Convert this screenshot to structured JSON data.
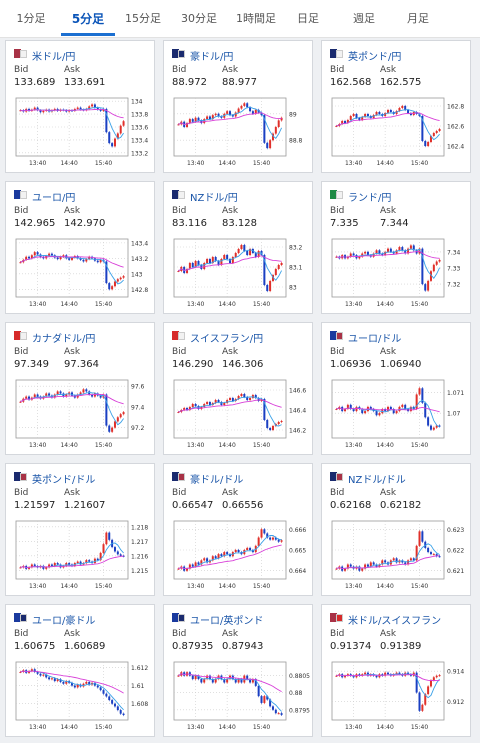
{
  "tabs": [
    {
      "label": "1分足",
      "active": false
    },
    {
      "label": "5分足",
      "active": true
    },
    {
      "label": "15分足",
      "active": false
    },
    {
      "label": "30分足",
      "active": false
    },
    {
      "label": "1時間足",
      "active": false
    },
    {
      "label": "日足",
      "active": false
    },
    {
      "label": "週足",
      "active": false
    },
    {
      "label": "月足",
      "active": false
    }
  ],
  "colors": {
    "accent": "#1b6fd1",
    "up": "#e0302a",
    "down": "#1a3fc2",
    "ma_short": "#3aa1e8",
    "ma_long": "#d83fd8"
  },
  "labels": {
    "bid": "Bid",
    "ask": "Ask"
  },
  "cards": [
    {
      "name": "米ドル/円",
      "flag": [
        "#a83246",
        "#f2f2f2"
      ],
      "bid": "133.689",
      "ask": "133.691",
      "icon": "flag-us-jp-icon",
      "chart_data": {
        "type": "candlestick",
        "x_ticks": [
          "13:40",
          "14:40",
          "15:40"
        ],
        "y_ticks": [
          "134",
          "133.8",
          "133.6",
          "133.4",
          "133.2"
        ],
        "ylim": [
          133.15,
          134.05
        ],
        "close": [
          133.86,
          133.84,
          133.88,
          133.85,
          133.87,
          133.9,
          133.86,
          133.83,
          133.85,
          133.87,
          133.84,
          133.86,
          133.88,
          133.85,
          133.87,
          133.86,
          133.84,
          133.86,
          133.85,
          133.88,
          133.9,
          133.87,
          133.86,
          133.88,
          133.92,
          133.95,
          133.9,
          133.87,
          133.85,
          133.88,
          133.52,
          133.35,
          133.3,
          133.42,
          133.5,
          133.62,
          133.69
        ]
      }
    },
    {
      "name": "豪ドル/円",
      "flag": [
        "#1a2a6e",
        "#1a2a6e"
      ],
      "bid": "88.972",
      "ask": "88.977",
      "icon": "flag-au-jp-icon",
      "chart_data": {
        "type": "candlestick",
        "x_ticks": [
          "13:40",
          "14:40",
          "15:40"
        ],
        "y_ticks": [
          "89",
          "88.8"
        ],
        "ylim": [
          88.68,
          89.12
        ],
        "close": [
          88.92,
          88.94,
          88.9,
          88.93,
          88.96,
          88.94,
          88.97,
          88.95,
          88.93,
          88.96,
          88.98,
          88.96,
          88.99,
          89.0,
          88.98,
          88.97,
          89.0,
          89.02,
          88.99,
          88.98,
          89.01,
          89.04,
          89.06,
          89.08,
          89.05,
          89.02,
          89.0,
          89.03,
          89.01,
          88.99,
          88.78,
          88.74,
          88.8,
          88.85,
          88.9,
          88.95,
          88.97
        ]
      }
    },
    {
      "name": "英ポンド/円",
      "flag": [
        "#1a2a6e",
        "#f2f2f2"
      ],
      "bid": "162.568",
      "ask": "162.575",
      "icon": "flag-gb-jp-icon",
      "chart_data": {
        "type": "candlestick",
        "x_ticks": [
          "13:40",
          "14:40",
          "15:40"
        ],
        "y_ticks": [
          "162.8",
          "162.6",
          "162.4"
        ],
        "ylim": [
          162.3,
          162.88
        ],
        "close": [
          162.6,
          162.62,
          162.65,
          162.63,
          162.66,
          162.7,
          162.72,
          162.68,
          162.66,
          162.69,
          162.72,
          162.7,
          162.68,
          162.71,
          162.74,
          162.72,
          162.7,
          162.73,
          162.76,
          162.74,
          162.72,
          162.75,
          162.78,
          162.8,
          162.76,
          162.73,
          162.71,
          162.74,
          162.72,
          162.7,
          162.45,
          162.4,
          162.44,
          162.5,
          162.53,
          162.55,
          162.57
        ]
      }
    },
    {
      "name": "ユーロ/円",
      "flag": [
        "#1a3a9e",
        "#f2f2f2"
      ],
      "bid": "142.965",
      "ask": "142.970",
      "icon": "flag-eu-jp-icon",
      "chart_data": {
        "type": "candlestick",
        "x_ticks": [
          "13:40",
          "14:40",
          "15:40"
        ],
        "y_ticks": [
          "143.4",
          "143.2",
          "143",
          "142.8"
        ],
        "ylim": [
          142.7,
          143.45
        ],
        "close": [
          143.15,
          143.18,
          143.22,
          143.2,
          143.24,
          143.28,
          143.25,
          143.22,
          143.2,
          143.23,
          143.26,
          143.24,
          143.21,
          143.19,
          143.22,
          143.24,
          143.2,
          143.18,
          143.21,
          143.23,
          143.2,
          143.18,
          143.16,
          143.19,
          143.22,
          143.2,
          143.17,
          143.15,
          143.18,
          143.16,
          142.88,
          142.8,
          142.84,
          142.9,
          142.93,
          142.95,
          142.97
        ]
      }
    },
    {
      "name": "NZドル/円",
      "flag": [
        "#1a2a6e",
        "#f2f2f2"
      ],
      "bid": "83.116",
      "ask": "83.128",
      "icon": "flag-nz-jp-icon",
      "chart_data": {
        "type": "candlestick",
        "x_ticks": [
          "13:40",
          "14:40",
          "15:40"
        ],
        "y_ticks": [
          "83.2",
          "83.1",
          "83"
        ],
        "ylim": [
          82.95,
          83.24
        ],
        "close": [
          83.08,
          83.1,
          83.07,
          83.09,
          83.12,
          83.1,
          83.13,
          83.11,
          83.09,
          83.12,
          83.14,
          83.12,
          83.15,
          83.13,
          83.11,
          83.14,
          83.16,
          83.14,
          83.12,
          83.15,
          83.17,
          83.19,
          83.21,
          83.18,
          83.16,
          83.19,
          83.17,
          83.15,
          83.18,
          83.16,
          83.01,
          82.98,
          83.03,
          83.06,
          83.09,
          83.11,
          83.12
        ]
      }
    },
    {
      "name": "ランド/円",
      "flag": [
        "#1e8a45",
        "#f2f2f2"
      ],
      "bid": "7.335",
      "ask": "7.344",
      "icon": "flag-za-jp-icon",
      "chart_data": {
        "type": "candlestick",
        "x_ticks": [
          "13:40",
          "14:40",
          "15:40"
        ],
        "y_ticks": [
          "7.34",
          "7.33",
          "7.32"
        ],
        "ylim": [
          7.312,
          7.348
        ],
        "close": [
          7.337,
          7.336,
          7.338,
          7.336,
          7.337,
          7.339,
          7.338,
          7.336,
          7.337,
          7.339,
          7.34,
          7.338,
          7.337,
          7.339,
          7.341,
          7.339,
          7.338,
          7.34,
          7.342,
          7.34,
          7.339,
          7.341,
          7.343,
          7.341,
          7.339,
          7.342,
          7.344,
          7.341,
          7.339,
          7.342,
          7.32,
          7.316,
          7.322,
          7.328,
          7.332,
          7.334,
          7.335
        ]
      }
    },
    {
      "name": "カナダドル/円",
      "flag": [
        "#d62a2a",
        "#f2f2f2"
      ],
      "bid": "97.349",
      "ask": "97.364",
      "icon": "flag-ca-jp-icon",
      "chart_data": {
        "type": "candlestick",
        "x_ticks": [
          "13:40",
          "14:40",
          "15:40"
        ],
        "y_ticks": [
          "97.6",
          "97.4",
          "97.2"
        ],
        "ylim": [
          97.1,
          97.66
        ],
        "close": [
          97.45,
          97.48,
          97.5,
          97.47,
          97.49,
          97.52,
          97.5,
          97.48,
          97.5,
          97.53,
          97.51,
          97.49,
          97.52,
          97.55,
          97.53,
          97.5,
          97.52,
          97.54,
          97.51,
          97.49,
          97.52,
          97.54,
          97.57,
          97.55,
          97.52,
          97.5,
          97.53,
          97.51,
          97.49,
          97.52,
          97.22,
          97.16,
          97.2,
          97.26,
          97.3,
          97.33,
          97.35
        ]
      }
    },
    {
      "name": "スイスフラン/円",
      "flag": [
        "#d62a2a",
        "#f2f2f2"
      ],
      "bid": "146.290",
      "ask": "146.306",
      "icon": "flag-ch-jp-icon",
      "chart_data": {
        "type": "candlestick",
        "x_ticks": [
          "13:40",
          "14:40",
          "15:40"
        ],
        "y_ticks": [
          "146.6",
          "146.4",
          "146.2"
        ],
        "ylim": [
          146.12,
          146.7
        ],
        "close": [
          146.38,
          146.4,
          146.42,
          146.4,
          146.43,
          146.46,
          146.44,
          146.41,
          146.43,
          146.46,
          146.48,
          146.45,
          146.47,
          146.5,
          146.48,
          146.45,
          146.47,
          146.5,
          146.52,
          146.49,
          146.51,
          146.54,
          146.56,
          146.53,
          146.5,
          146.52,
          146.55,
          146.52,
          146.49,
          146.51,
          146.3,
          146.22,
          146.2,
          146.24,
          146.26,
          146.28,
          146.29
        ]
      }
    },
    {
      "name": "ユーロ/ドル",
      "flag": [
        "#1a3a9e",
        "#a83246"
      ],
      "bid": "1.06936",
      "ask": "1.06940",
      "icon": "flag-eu-us-icon",
      "chart_data": {
        "type": "candlestick",
        "x_ticks": [
          "13:40",
          "14:40",
          "15:40"
        ],
        "y_ticks": [
          "1.071",
          "1.07"
        ],
        "ylim": [
          1.0688,
          1.0716
        ],
        "close": [
          1.0702,
          1.0703,
          1.0701,
          1.0702,
          1.0704,
          1.0702,
          1.0701,
          1.0703,
          1.0702,
          1.07,
          1.0701,
          1.0703,
          1.0702,
          1.0701,
          1.0699,
          1.07,
          1.0702,
          1.0701,
          1.0703,
          1.0702,
          1.07,
          1.0701,
          1.0703,
          1.0704,
          1.0702,
          1.0701,
          1.0703,
          1.0702,
          1.0709,
          1.0712,
          1.0705,
          1.0698,
          1.0694,
          1.0692,
          1.0693,
          1.0694,
          1.06936
        ]
      }
    },
    {
      "name": "英ポンド/ドル",
      "flag": [
        "#1a2a6e",
        "#a83246"
      ],
      "bid": "1.21597",
      "ask": "1.21607",
      "icon": "flag-gb-us-icon",
      "chart_data": {
        "type": "candlestick",
        "x_ticks": [
          "13:40",
          "14:40",
          "15:40"
        ],
        "y_ticks": [
          "1.218",
          "1.217",
          "1.216",
          "1.215"
        ],
        "ylim": [
          1.2144,
          1.2184
        ],
        "close": [
          1.2152,
          1.2153,
          1.2151,
          1.2152,
          1.2154,
          1.2153,
          1.2152,
          1.2153,
          1.2151,
          1.2152,
          1.2154,
          1.2153,
          1.2155,
          1.2154,
          1.2152,
          1.2153,
          1.2155,
          1.2154,
          1.2153,
          1.2155,
          1.2156,
          1.2154,
          1.2155,
          1.2157,
          1.2156,
          1.2155,
          1.2158,
          1.2157,
          1.2162,
          1.2168,
          1.2176,
          1.2171,
          1.2166,
          1.2163,
          1.2161,
          1.216,
          1.21597
        ]
      }
    },
    {
      "name": "豪ドル/ドル",
      "flag": [
        "#1a2a6e",
        "#a83246"
      ],
      "bid": "0.66547",
      "ask": "0.66556",
      "icon": "flag-au-us-icon",
      "chart_data": {
        "type": "candlestick",
        "x_ticks": [
          "13:40",
          "14:40",
          "15:40"
        ],
        "y_ticks": [
          "0.666",
          "0.665",
          "0.664"
        ],
        "ylim": [
          0.6636,
          0.6664
        ],
        "close": [
          0.6641,
          0.6642,
          0.664,
          0.6641,
          0.6643,
          0.6642,
          0.6644,
          0.6643,
          0.6645,
          0.6646,
          0.6644,
          0.6645,
          0.6647,
          0.6646,
          0.6648,
          0.6647,
          0.6649,
          0.6648,
          0.6647,
          0.6649,
          0.665,
          0.6649,
          0.6648,
          0.665,
          0.6651,
          0.665,
          0.6649,
          0.6652,
          0.6656,
          0.666,
          0.6658,
          0.6656,
          0.6655,
          0.6656,
          0.6655,
          0.6654,
          0.66547
        ]
      }
    },
    {
      "name": "NZドル/ドル",
      "flag": [
        "#1a2a6e",
        "#a83246"
      ],
      "bid": "0.62168",
      "ask": "0.62182",
      "icon": "flag-nz-us-icon",
      "chart_data": {
        "type": "candlestick",
        "x_ticks": [
          "13:40",
          "14:40",
          "15:40"
        ],
        "y_ticks": [
          "0.623",
          "0.622",
          "0.621"
        ],
        "ylim": [
          0.6206,
          0.6234
        ],
        "close": [
          0.6211,
          0.6212,
          0.621,
          0.6211,
          0.6213,
          0.6212,
          0.6211,
          0.6212,
          0.621,
          0.6211,
          0.6213,
          0.6212,
          0.6214,
          0.6213,
          0.6212,
          0.6213,
          0.6215,
          0.6214,
          0.6213,
          0.6215,
          0.6216,
          0.6214,
          0.6215,
          0.6214,
          0.6213,
          0.6215,
          0.6216,
          0.6215,
          0.6222,
          0.6229,
          0.6224,
          0.6221,
          0.6219,
          0.6218,
          0.6218,
          0.6217,
          0.62168
        ]
      }
    },
    {
      "name": "ユーロ/豪ドル",
      "flag": [
        "#1a3a9e",
        "#1a2a6e"
      ],
      "bid": "1.60675",
      "ask": "1.60689",
      "icon": "flag-eu-au-icon",
      "chart_data": {
        "type": "candlestick",
        "x_ticks": [
          "13:40",
          "14:40",
          "15:40"
        ],
        "y_ticks": [
          "1.612",
          "1.61",
          "1.608"
        ],
        "ylim": [
          1.6062,
          1.6126
        ],
        "close": [
          1.6115,
          1.6117,
          1.6114,
          1.6116,
          1.6118,
          1.6115,
          1.6113,
          1.6111,
          1.6112,
          1.6109,
          1.6107,
          1.6108,
          1.6105,
          1.6107,
          1.6104,
          1.6102,
          1.6105,
          1.6103,
          1.61,
          1.6098,
          1.6101,
          1.6099,
          1.6102,
          1.6104,
          1.6101,
          1.6103,
          1.61,
          1.6098,
          1.6095,
          1.6091,
          1.6088,
          1.6084,
          1.608,
          1.6077,
          1.6073,
          1.6069,
          1.60675
        ]
      }
    },
    {
      "name": "ユーロ/英ポンド",
      "flag": [
        "#1a3a9e",
        "#1a2a6e"
      ],
      "bid": "0.87935",
      "ask": "0.87943",
      "icon": "flag-eu-gb-icon",
      "chart_data": {
        "type": "candlestick",
        "x_ticks": [
          "13:40",
          "14:40",
          "15:40"
        ],
        "y_ticks": [
          "0.8805",
          "0.88",
          "0.8795"
        ],
        "ylim": [
          0.8792,
          0.8809
        ],
        "close": [
          0.8805,
          0.8806,
          0.8805,
          0.8806,
          0.8805,
          0.8804,
          0.8805,
          0.8804,
          0.8803,
          0.8804,
          0.8805,
          0.8804,
          0.8803,
          0.8804,
          0.8805,
          0.8804,
          0.8803,
          0.8804,
          0.8805,
          0.8804,
          0.8803,
          0.8804,
          0.8803,
          0.8805,
          0.8804,
          0.8803,
          0.8804,
          0.8802,
          0.8799,
          0.8797,
          0.8799,
          0.8798,
          0.8796,
          0.8795,
          0.8794,
          0.8794,
          0.87935
        ]
      }
    },
    {
      "name": "米ドル/スイスフラン",
      "flag": [
        "#a83246",
        "#d62a2a"
      ],
      "bid": "0.91374",
      "ask": "0.91389",
      "icon": "flag-us-ch-icon",
      "chart_data": {
        "type": "candlestick",
        "x_ticks": [
          "13:40",
          "14:40",
          "15:40"
        ],
        "y_ticks": [
          "0.914",
          "0.912"
        ],
        "ylim": [
          0.9108,
          0.9146
        ],
        "close": [
          0.9137,
          0.9138,
          0.9136,
          0.9137,
          0.9138,
          0.9137,
          0.9136,
          0.9138,
          0.9137,
          0.9138,
          0.9139,
          0.9137,
          0.9138,
          0.9137,
          0.9136,
          0.9138,
          0.9137,
          0.9139,
          0.9138,
          0.9137,
          0.9138,
          0.9139,
          0.9138,
          0.9137,
          0.9139,
          0.9138,
          0.9137,
          0.9139,
          0.9126,
          0.9114,
          0.9118,
          0.9125,
          0.913,
          0.9134,
          0.9136,
          0.9137,
          0.91374
        ]
      }
    }
  ]
}
